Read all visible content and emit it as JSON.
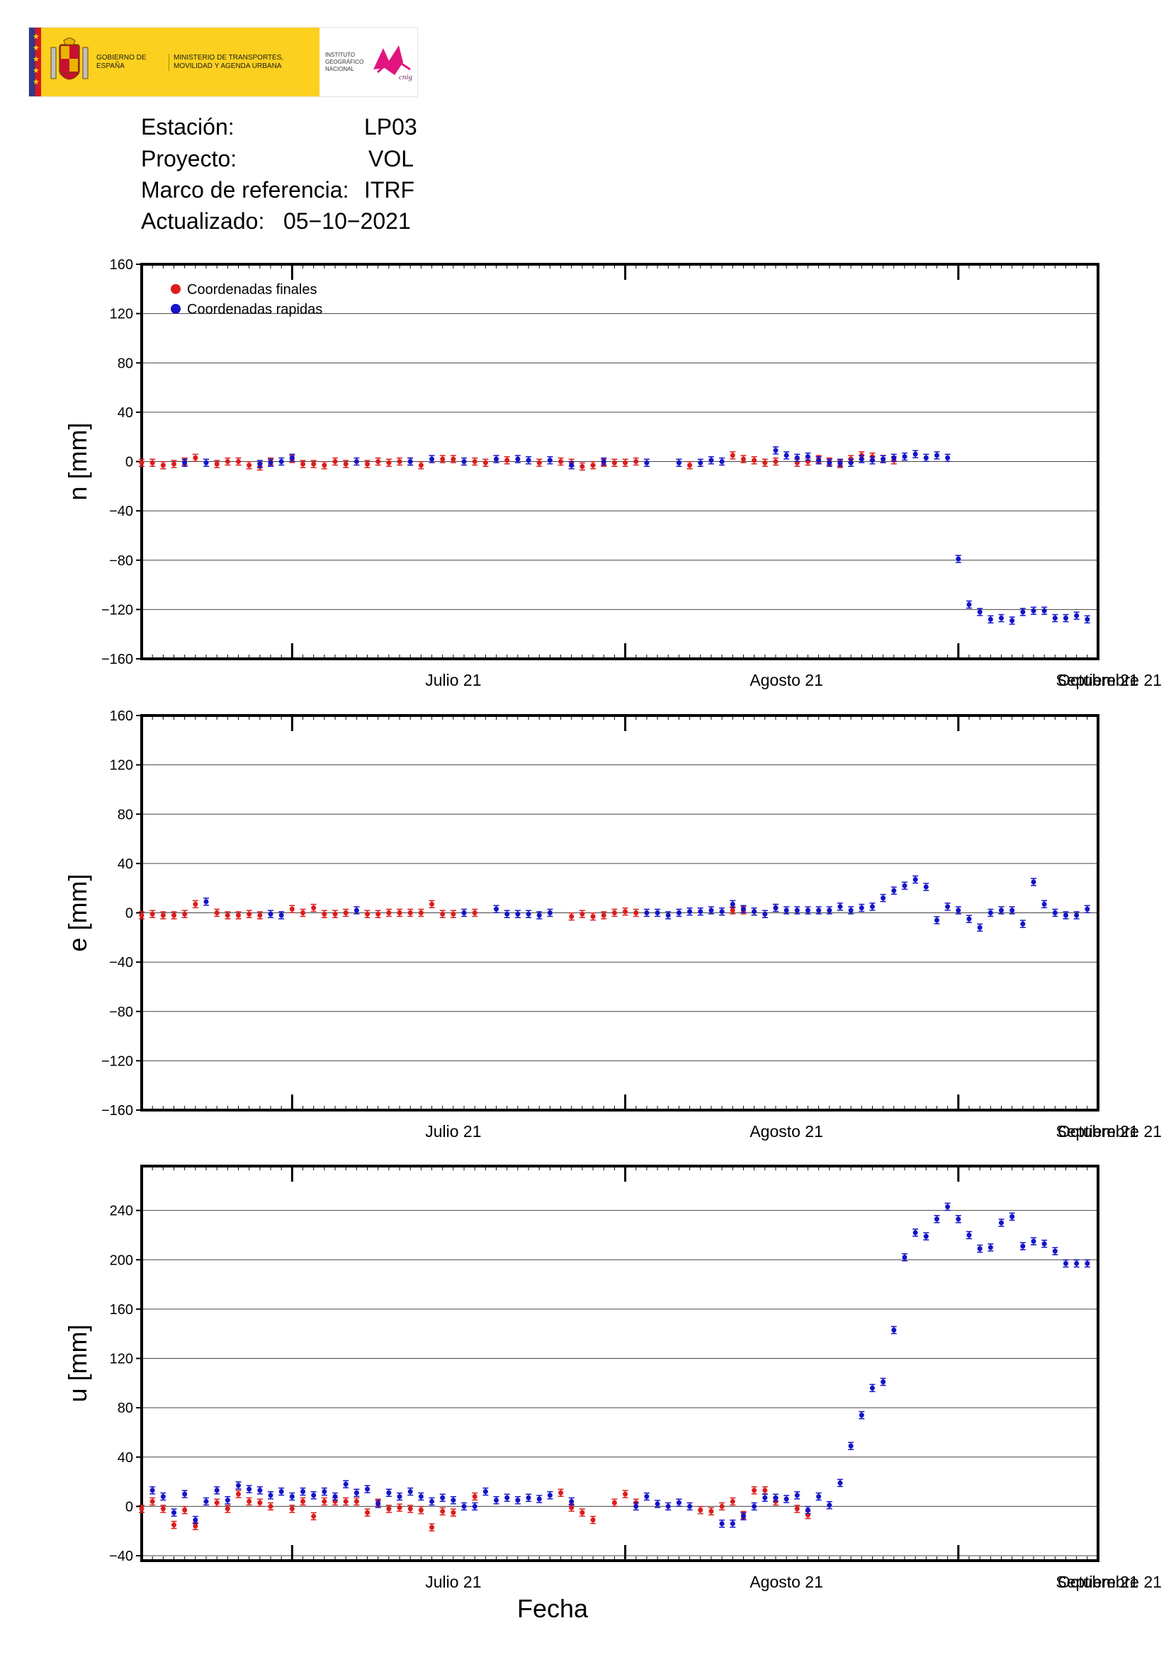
{
  "header": {
    "logo_left": "GOBIERNO DE ESPAÑA",
    "logo_mid": "MINISTERIO DE TRANSPORTES, MOVILIDAD Y AGENDA URBANA",
    "logo_right": "INSTITUTO GEOGRÁFICO NACIONAL",
    "station_label": "Estación:",
    "station_value": "LP03",
    "project_label": "Proyecto:",
    "project_value": "VOL",
    "frame_label": "Marco de referencia:",
    "frame_value": "ITRF",
    "updated_label": "Actualizado:",
    "updated_value": "05−10−2021"
  },
  "colors": {
    "final": "#dd1c1c",
    "rapid": "#1414c8",
    "grid": "#000000"
  },
  "chart_data": [
    {
      "type": "scatter",
      "ylabel": "n [mm]",
      "xlabel": "",
      "ylim": [
        -160,
        160
      ],
      "yticks": [
        -160,
        -120,
        -80,
        -40,
        0,
        40,
        80,
        120,
        160
      ],
      "xlim_days": [
        0,
        89
      ],
      "month_labels": [
        "Julio 21",
        "Agosto 21",
        "Septiembre 21",
        "Octubre 21"
      ],
      "grid": true,
      "legend": [
        "Coordenadas finales",
        "Coordenadas rapidas"
      ],
      "legend_position": "top-left",
      "series": [
        {
          "name": "Coordenadas finales",
          "x": [
            0,
            1,
            2,
            3,
            4,
            5,
            7,
            8,
            9,
            10,
            11,
            12,
            14,
            15,
            16,
            17,
            18,
            19,
            21,
            22,
            23,
            24,
            25,
            26,
            28,
            29,
            31,
            32,
            34,
            37,
            39,
            40,
            41,
            42,
            43,
            44,
            45,
            46,
            51,
            55,
            56,
            57,
            58,
            59,
            61,
            62,
            63,
            64,
            65,
            66,
            67,
            68,
            69,
            70
          ],
          "y": [
            -1,
            -1,
            -3,
            -2,
            0,
            3,
            -2,
            0,
            0,
            -3,
            -4,
            0,
            2,
            -2,
            -2,
            -3,
            0,
            -2,
            -2,
            0,
            -1,
            0,
            0,
            -3,
            2,
            2,
            0,
            -1,
            1,
            -1,
            0,
            -1,
            -4,
            -3,
            -1,
            -1,
            -1,
            0,
            -3,
            5,
            2,
            1,
            -1,
            0,
            -1,
            0,
            2,
            0,
            -2,
            2,
            5,
            4,
            2,
            1
          ]
        },
        {
          "name": "Coordenadas rapidas",
          "x": [
            4,
            6,
            11,
            12,
            13,
            14,
            20,
            25,
            27,
            30,
            33,
            35,
            36,
            38,
            40,
            43,
            47,
            50,
            52,
            53,
            54,
            59,
            60,
            61,
            62,
            63,
            64,
            65,
            66,
            67,
            68,
            69,
            70,
            71,
            72,
            73,
            74,
            75,
            76,
            77,
            78,
            79,
            80,
            81,
            82,
            83,
            84,
            85,
            86,
            87,
            88
          ],
          "y": [
            -1,
            -1,
            -2,
            -1,
            0,
            3,
            0,
            0,
            2,
            0,
            2,
            2,
            1,
            1,
            -3,
            0,
            -1,
            -1,
            -1,
            1,
            0,
            9,
            5,
            3,
            4,
            1,
            -1,
            -1,
            -1,
            2,
            1,
            2,
            3,
            4,
            6,
            3,
            5,
            3,
            -79,
            -116,
            -122,
            -128,
            -127,
            -129,
            -122,
            -121,
            -121,
            -127,
            -127,
            -125,
            -128
          ]
        }
      ]
    },
    {
      "type": "scatter",
      "ylabel": "e [mm]",
      "xlabel": "",
      "ylim": [
        -160,
        160
      ],
      "yticks": [
        -160,
        -120,
        -80,
        -40,
        0,
        40,
        80,
        120,
        160
      ],
      "xlim_days": [
        0,
        89
      ],
      "month_labels": [
        "Julio 21",
        "Agosto 21",
        "Septiembre 21",
        "Octubre 21"
      ],
      "grid": true,
      "series": [
        {
          "name": "Coordenadas finales",
          "x": [
            0,
            1,
            2,
            3,
            4,
            5,
            7,
            8,
            9,
            10,
            11,
            14,
            15,
            16,
            17,
            18,
            19,
            21,
            22,
            23,
            24,
            25,
            26,
            27,
            28,
            29,
            31,
            40,
            41,
            42,
            43,
            44,
            45,
            46,
            55,
            56,
            57,
            58,
            59
          ],
          "y": [
            -2,
            -1,
            -2,
            -2,
            -1,
            7,
            0,
            -2,
            -2,
            -1,
            -2,
            3,
            0,
            4,
            -1,
            -1,
            0,
            -1,
            -1,
            0,
            0,
            0,
            0,
            7,
            -1,
            -1,
            0,
            -3,
            -1,
            -3,
            -2,
            0,
            1,
            0,
            2,
            2,
            1,
            -1,
            4
          ]
        },
        {
          "name": "Coordenadas rapidas",
          "x": [
            6,
            12,
            13,
            20,
            30,
            33,
            34,
            35,
            36,
            37,
            38,
            47,
            48,
            49,
            50,
            51,
            52,
            53,
            54,
            55,
            56,
            57,
            58,
            59,
            60,
            61,
            62,
            63,
            64,
            65,
            66,
            67,
            68,
            69,
            70,
            71,
            72,
            73,
            74,
            75,
            76,
            77,
            78,
            79,
            80,
            81,
            82,
            83,
            84,
            85,
            86,
            87,
            88
          ],
          "y": [
            9,
            -1,
            -2,
            2,
            0,
            3,
            -1,
            -1,
            -1,
            -2,
            0,
            0,
            0,
            -2,
            0,
            1,
            1,
            2,
            1,
            7,
            3,
            1,
            -1,
            4,
            2,
            2,
            2,
            2,
            2,
            5,
            2,
            4,
            5,
            12,
            18,
            22,
            27,
            21,
            -6,
            5,
            2,
            -5,
            -12,
            0,
            2,
            2,
            -9,
            25,
            7,
            0,
            -2,
            -2,
            3
          ]
        }
      ]
    },
    {
      "type": "scatter",
      "ylabel": "u [mm]",
      "xlabel": "Fecha",
      "ylim": [
        -44,
        276
      ],
      "yticks": [
        -40,
        0,
        40,
        80,
        120,
        160,
        200,
        240
      ],
      "xlim_days": [
        0,
        89
      ],
      "month_labels": [
        "Julio 21",
        "Agosto 21",
        "Septiembre 21",
        "Octubre 21"
      ],
      "grid": true,
      "series": [
        {
          "name": "Coordenadas finales",
          "x": [
            0,
            1,
            2,
            3,
            4,
            5,
            7,
            8,
            9,
            10,
            11,
            12,
            14,
            15,
            16,
            17,
            18,
            19,
            20,
            21,
            22,
            23,
            24,
            25,
            26,
            27,
            28,
            29,
            31,
            39,
            40,
            41,
            42,
            44,
            45,
            46,
            52,
            53,
            54,
            55,
            56,
            57,
            58,
            59,
            61,
            62
          ],
          "y": [
            -2,
            4,
            -2,
            -15,
            -3,
            -16,
            3,
            -2,
            10,
            4,
            3,
            0,
            -2,
            4,
            -8,
            4,
            4,
            4,
            4,
            -5,
            3,
            -2,
            -1,
            -2,
            -3,
            -17,
            -4,
            -5,
            8,
            11,
            -1,
            -5,
            -11,
            3,
            10,
            3,
            -3,
            -4,
            0,
            4,
            -7,
            13,
            13,
            4,
            -2,
            -7
          ]
        },
        {
          "name": "Coordenadas rapidas",
          "x": [
            1,
            2,
            3,
            4,
            5,
            6,
            7,
            8,
            9,
            10,
            11,
            12,
            13,
            14,
            15,
            16,
            17,
            18,
            19,
            20,
            21,
            22,
            23,
            24,
            25,
            26,
            27,
            28,
            29,
            30,
            31,
            32,
            33,
            34,
            35,
            36,
            37,
            38,
            40,
            46,
            47,
            48,
            49,
            50,
            51,
            54,
            55,
            56,
            57,
            58,
            59,
            60,
            61,
            62,
            63,
            64,
            65,
            66,
            67,
            68,
            69,
            70,
            71,
            72,
            73,
            74,
            75,
            76,
            77,
            78,
            79,
            80,
            81,
            82,
            83,
            84,
            85,
            86,
            87,
            88
          ],
          "y": [
            13,
            8,
            -5,
            10,
            -11,
            4,
            13,
            5,
            17,
            14,
            13,
            9,
            12,
            8,
            12,
            9,
            12,
            8,
            18,
            11,
            14,
            2,
            11,
            8,
            12,
            8,
            4,
            7,
            5,
            0,
            0,
            12,
            5,
            7,
            5,
            7,
            6,
            9,
            4,
            0,
            8,
            2,
            0,
            3,
            0,
            -14,
            -14,
            -8,
            0,
            7,
            7,
            6,
            9,
            -3,
            8,
            1,
            19,
            49,
            74,
            96,
            101,
            143,
            202,
            222,
            219,
            233,
            243,
            233,
            220,
            209,
            210,
            230,
            235,
            211,
            215,
            213,
            207,
            197,
            197,
            197
          ]
        }
      ]
    }
  ]
}
